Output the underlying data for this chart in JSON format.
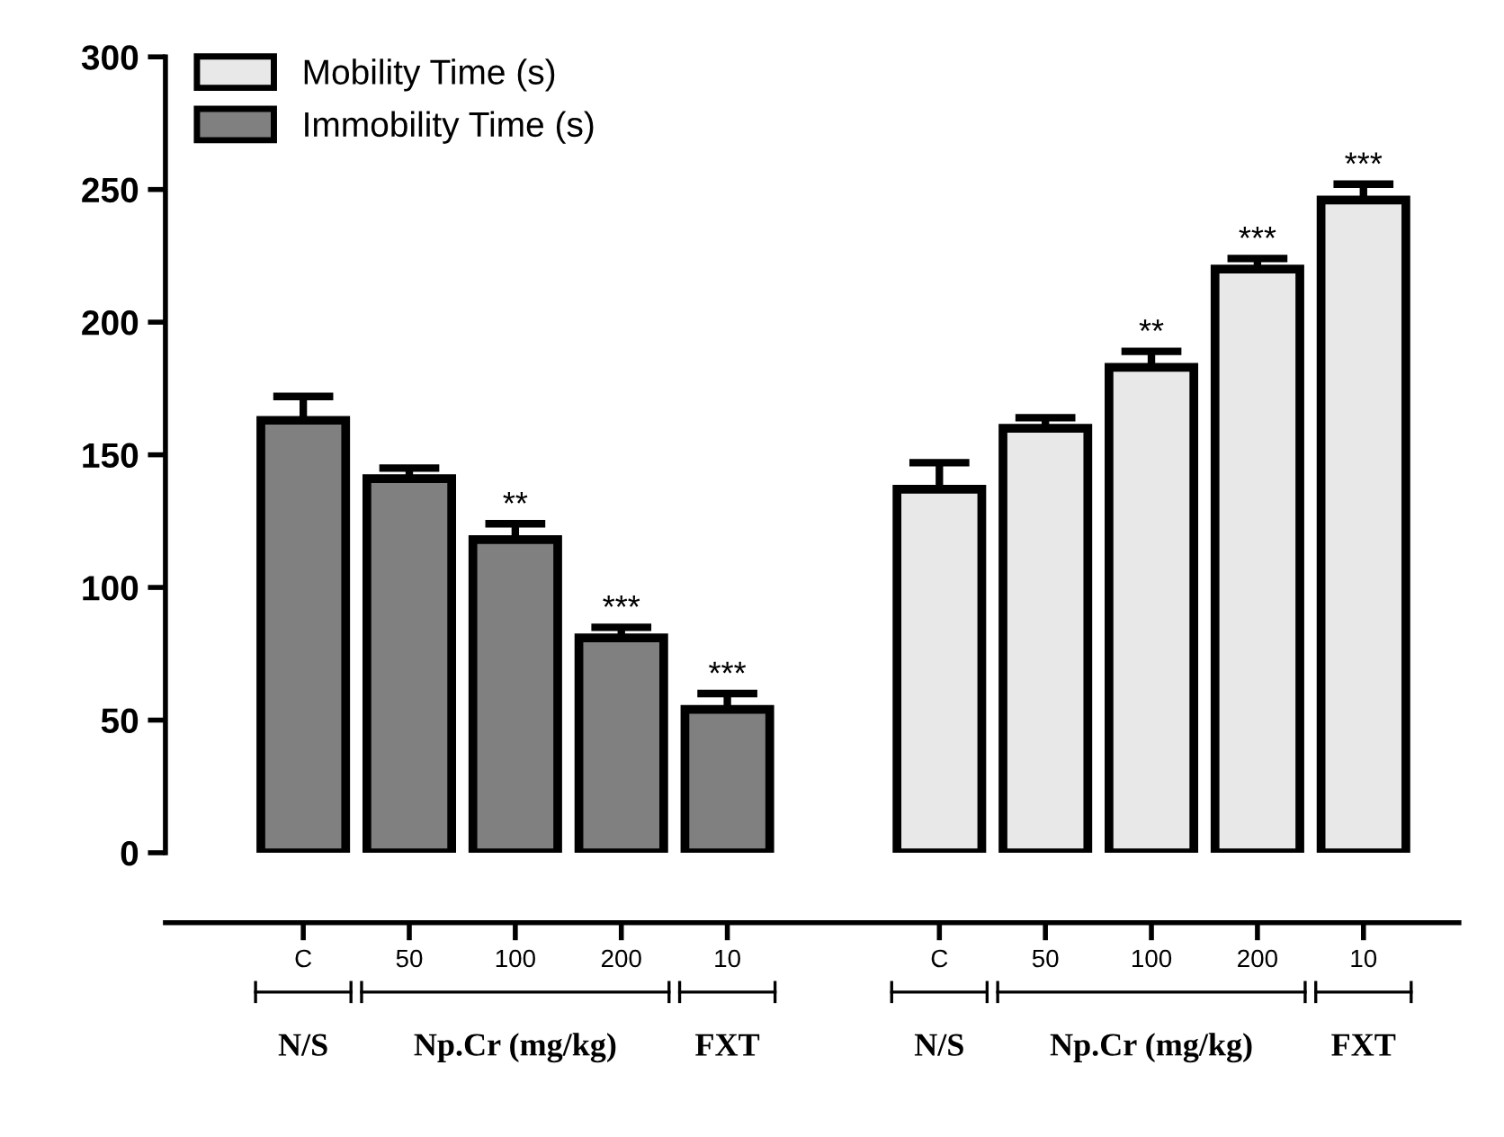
{
  "chart_data": {
    "type": "bar",
    "categories": [
      "C",
      "50",
      "100",
      "200",
      "10",
      null,
      "C",
      "50",
      "100",
      "200",
      "10"
    ],
    "series": [
      {
        "name": "Mobility Time (s)",
        "color": "#e8e8e8",
        "values": [
          null,
          null,
          null,
          null,
          null,
          null,
          137,
          160,
          183,
          220,
          246
        ],
        "errors": [
          null,
          null,
          null,
          null,
          null,
          null,
          10,
          4,
          6,
          4,
          6
        ],
        "value_labels": [
          null,
          null,
          null,
          null,
          null,
          null,
          null,
          null,
          "**",
          "***",
          "***"
        ]
      },
      {
        "name": "Immobility Time (s)",
        "color": "#808080",
        "values": [
          163,
          141,
          118,
          81,
          54,
          null,
          null,
          null,
          null,
          null,
          null
        ],
        "errors": [
          9,
          4,
          6,
          4,
          6,
          null,
          null,
          null,
          null,
          null,
          null
        ],
        "value_labels": [
          null,
          null,
          "**",
          "***",
          "***",
          null,
          null,
          null,
          null,
          null,
          null
        ]
      }
    ],
    "annotations": [
      "N/S",
      "Np.Cr (mg/kg)",
      "FXT",
      "N/S",
      "Np.Cr (mg/kg)",
      "FXT"
    ],
    "ylim": [
      0,
      300
    ],
    "yticks": [
      0,
      50,
      100,
      150,
      200,
      250,
      300
    ],
    "grid": false,
    "legend": "top left"
  }
}
